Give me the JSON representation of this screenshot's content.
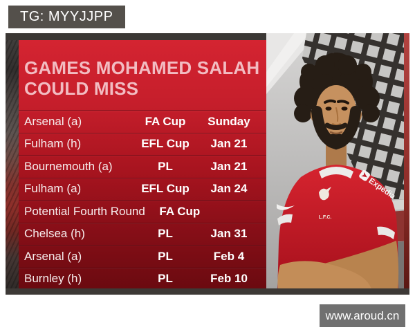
{
  "page": {
    "tg_badge": "TG: MYYJJPP",
    "watermark": "www.aroud.cn"
  },
  "infographic": {
    "title_line1": "GAMES MOHAMED SALAH",
    "title_line2": "COULD MISS",
    "columns": [
      "opponent",
      "competition",
      "date"
    ],
    "rows": [
      {
        "opponent": "Arsenal (a)",
        "competition": "FA Cup",
        "date": "Sunday"
      },
      {
        "opponent": "Fulham (h)",
        "competition": "EFL Cup",
        "date": "Jan 21"
      },
      {
        "opponent": "Bournemouth (a)",
        "competition": "PL",
        "date": "Jan 21"
      },
      {
        "opponent": "Fulham (a)",
        "competition": "EFL Cup",
        "date": "Jan 24"
      },
      {
        "opponent": "Potential Fourth Round",
        "competition": "FA Cup",
        "date": ""
      },
      {
        "opponent": "Chelsea (h)",
        "competition": "PL",
        "date": "Jan 31"
      },
      {
        "opponent": "Arsenal (a)",
        "competition": "PL",
        "date": "Feb 4"
      },
      {
        "opponent": "Burnley (h)",
        "competition": "PL",
        "date": "Feb 10"
      }
    ],
    "photo": {
      "subject": "Mohamed Salah, arms crossed, Liverpool home kit, Anfield backdrop",
      "sleeve_sponsor": "Expedia",
      "crest_text": "L.F.C."
    },
    "colors": {
      "panel_top": "#d42431",
      "panel_bottom": "#6b0a10",
      "title_text": "#f2bcc2",
      "row_text": "#ffffff",
      "frame_strip": "#3b3734",
      "badge_bg": "#54504b",
      "watermark_bg": "#707070",
      "jersey_red": "#c41824"
    }
  }
}
